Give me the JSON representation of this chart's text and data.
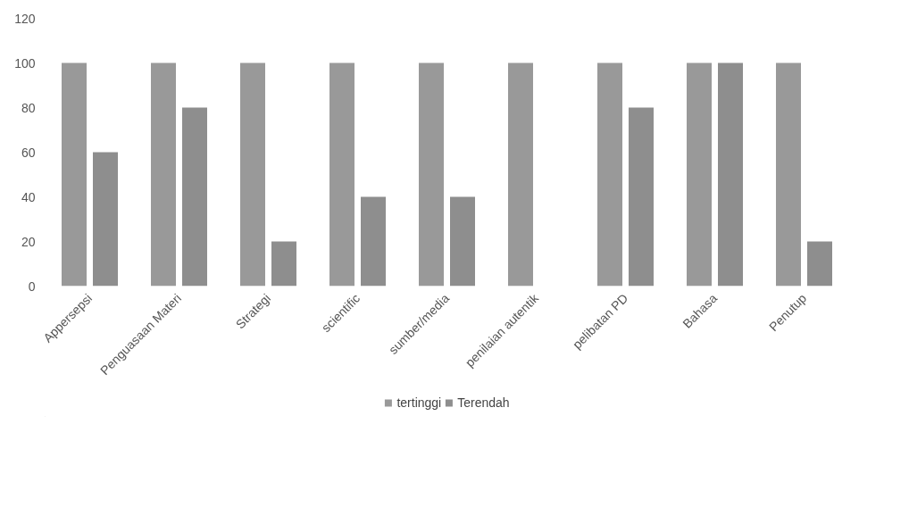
{
  "chart_data": {
    "type": "bar",
    "categories": [
      "Appersepsi",
      "Penguasaan Materi",
      "Strategi",
      "scientific",
      "sumber/media",
      "penilaian autentik",
      "pelibatan PD",
      "Bahasa",
      "Penutup"
    ],
    "series": [
      {
        "name": "tertinggi",
        "color": "#999999",
        "values": [
          100,
          100,
          100,
          100,
          100,
          100,
          100,
          100,
          100
        ]
      },
      {
        "name": "Terendah",
        "color": "#8e8e8e",
        "values": [
          60,
          80,
          20,
          40,
          40,
          0,
          80,
          100,
          20
        ]
      }
    ],
    "ylim": [
      0,
      120
    ],
    "yticks": [
      0,
      20,
      40,
      60,
      80,
      100,
      120
    ],
    "grid": false,
    "legend": "bottom"
  }
}
